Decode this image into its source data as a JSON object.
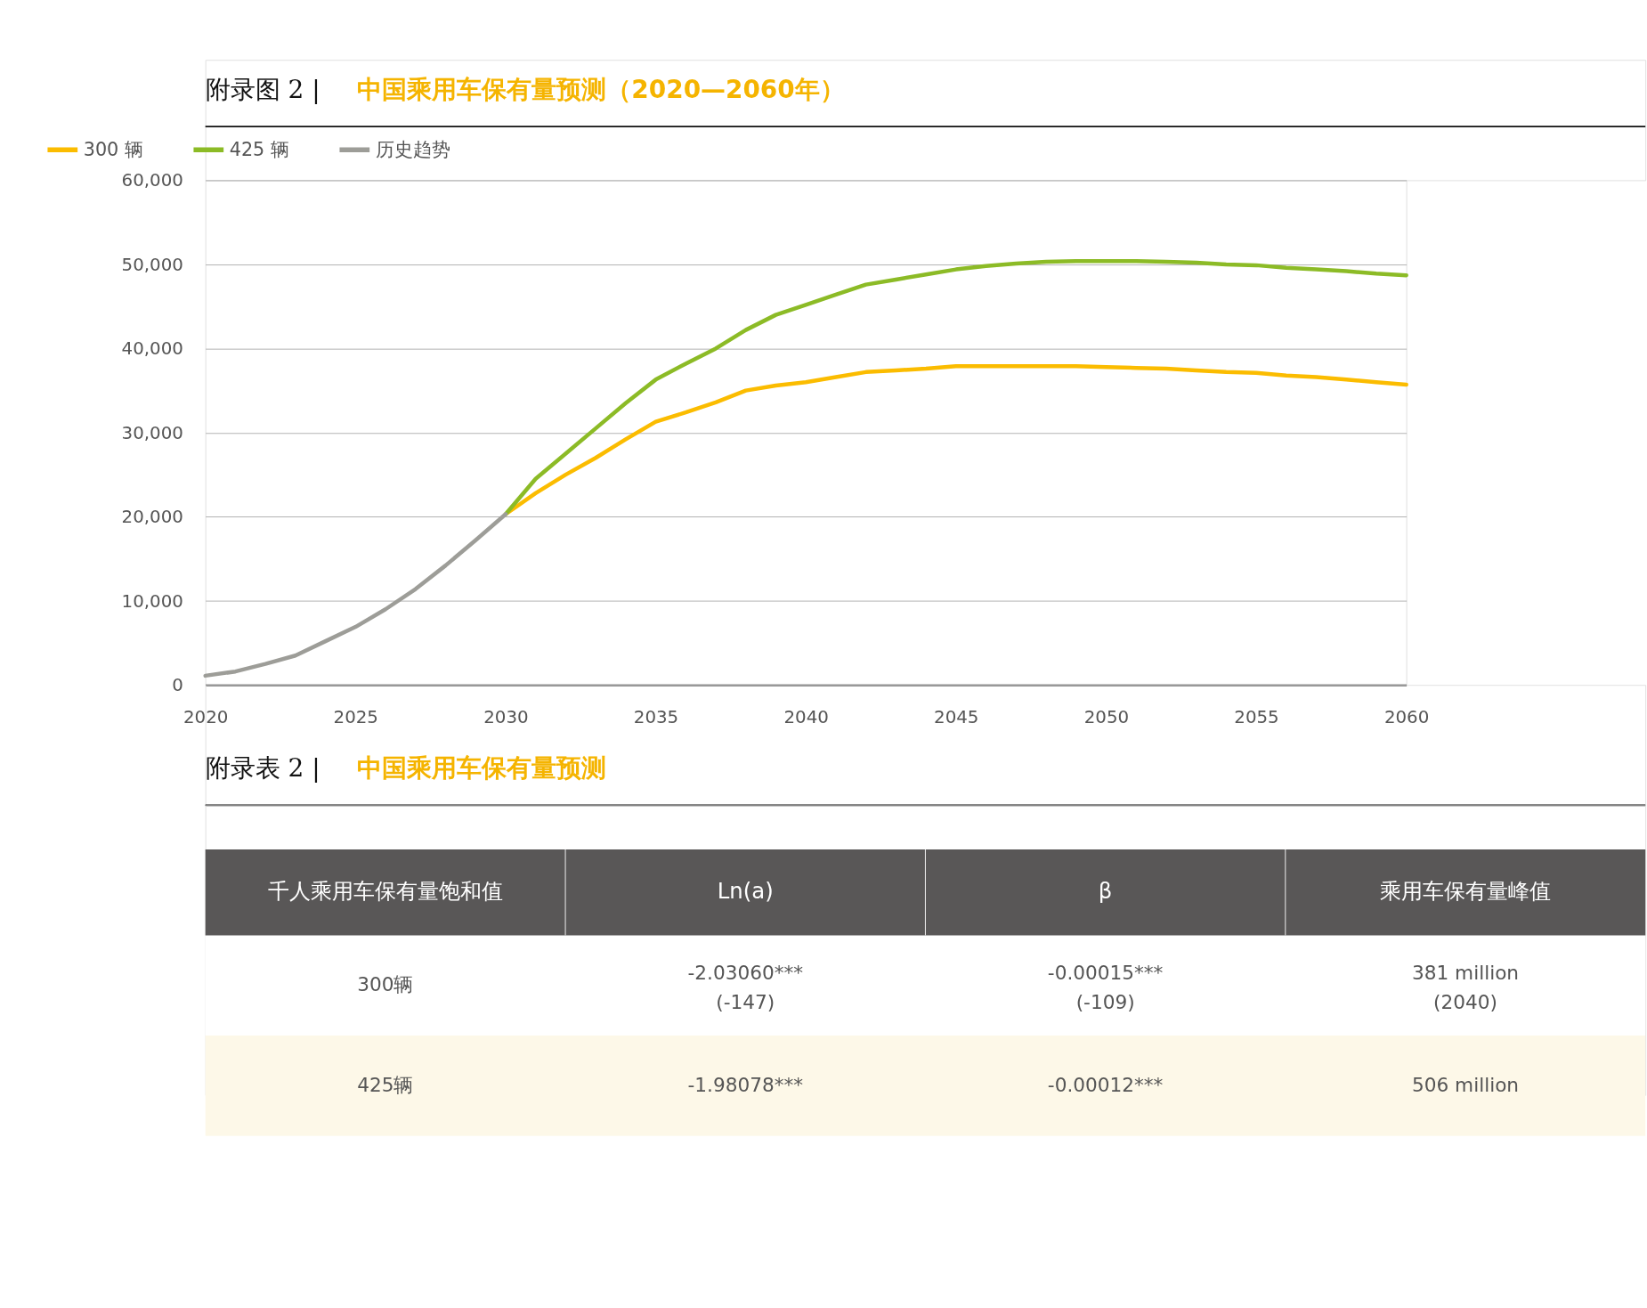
{
  "chart_data": [
    {
      "type": "line",
      "title": "附录图 2 | 中国乘用车保有量预测（2020—2060年）",
      "xlim": [
        2020,
        2060
      ],
      "xticks": [
        2020,
        2025,
        2030,
        2035,
        2040,
        2045,
        2050,
        2055,
        2060
      ],
      "ylim": [
        0,
        60000
      ],
      "yticks": [
        0,
        {
          "value": 10000,
          "label": "10,000"
        },
        {
          "value": 20000,
          "label": "20,000"
        },
        {
          "value": 30000,
          "label": "30,000"
        },
        {
          "value": 40000,
          "label": "40,000"
        },
        {
          "value": 50000,
          "label": "50,000"
        },
        {
          "value": 60000,
          "label": "60,000"
        }
      ],
      "grid": "y",
      "legend": "top left",
      "line_style": "solid",
      "marker": "none",
      "series": [
        {
          "name": "300 辆",
          "color": "#fbbc00",
          "x": [
            2030,
            2031,
            2032,
            2033,
            2034,
            2035,
            2036,
            2037,
            2038,
            2039,
            2040,
            2041,
            2042,
            2043,
            2044,
            2045,
            2046,
            2047,
            2048,
            2049,
            2050,
            2051,
            2052,
            2053,
            2054,
            2055,
            2056,
            2057,
            2058,
            2059,
            2060
          ],
          "values": [
            20300,
            22800,
            25000,
            27000,
            29200,
            31300,
            32400,
            33600,
            35000,
            35600,
            36000,
            36600,
            37200,
            37400,
            37600,
            37900,
            37900,
            37900,
            37900,
            37900,
            37800,
            37700,
            37600,
            37400,
            37200,
            37100,
            36800,
            36600,
            36300,
            36000,
            35700
          ]
        },
        {
          "name": "425 辆",
          "color": "#8cbb26",
          "x": [
            2030,
            2031,
            2032,
            2033,
            2034,
            2035,
            2036,
            2037,
            2038,
            2039,
            2040,
            2041,
            2042,
            2043,
            2044,
            2045,
            2046,
            2047,
            2048,
            2049,
            2050,
            2051,
            2052,
            2053,
            2054,
            2055,
            2056,
            2057,
            2058,
            2059,
            2060
          ],
          "values": [
            20300,
            24500,
            27500,
            30500,
            33500,
            36300,
            38200,
            40000,
            42200,
            44000,
            45200,
            46400,
            47600,
            48200,
            48800,
            49400,
            49800,
            50100,
            50300,
            50400,
            50400,
            50400,
            50300,
            50200,
            50000,
            49900,
            49600,
            49400,
            49200,
            48900,
            48700
          ]
        },
        {
          "name": "历史趋势",
          "color": "#9d9d98",
          "x": [
            2020,
            2021,
            2022,
            2023,
            2024,
            2025,
            2026,
            2027,
            2028,
            2029,
            2030
          ],
          "values": [
            1100,
            1600,
            2500,
            3500,
            5200,
            6900,
            9000,
            11400,
            14200,
            17200,
            20300
          ]
        }
      ]
    },
    {
      "type": "other",
      "title": "附录表 2 | 中国乘用车保有量预测",
      "categories": [
        "千人乘用车保有量饱和值",
        "Ln(a)",
        "β",
        "乘用车保有量峰值"
      ],
      "annotations": [
        "300辆",
        "-2.03060***\n(-147)",
        "-0.00015***\n(-109)",
        "381 million\n(2040)",
        "425辆",
        "-1.98078***",
        "-0.00012***",
        "506 million"
      ]
    }
  ]
}
